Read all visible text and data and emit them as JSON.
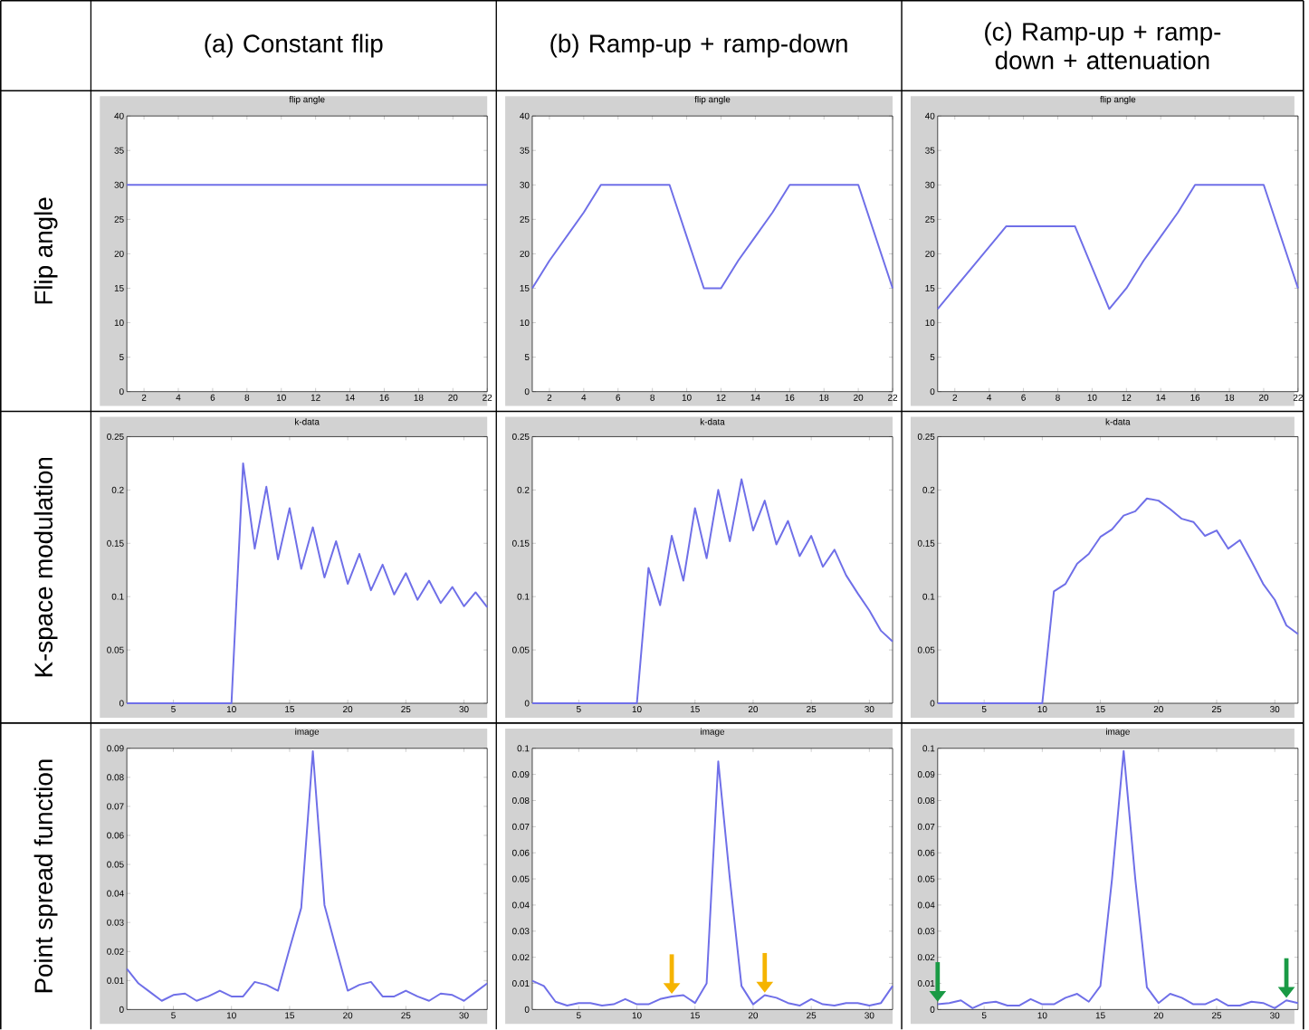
{
  "chart_data": [
    {
      "type": "other",
      "annotations": [
        "(a) Constant flip",
        "(b) Ramp-up + ramp-down",
        "(c) Ramp-up + ramp-down + attenuation",
        "Flip angle",
        "K-space modulation",
        "Point spread function"
      ]
    },
    {
      "type": "line",
      "title": "flip angle",
      "color": "#6f6fe8",
      "x": [
        1,
        2,
        3,
        4,
        5,
        6,
        7,
        8,
        9,
        10,
        11,
        12,
        13,
        14,
        15,
        16,
        17,
        18,
        19,
        20,
        21,
        22
      ],
      "values": [
        30,
        30,
        30,
        30,
        30,
        30,
        30,
        30,
        30,
        30,
        30,
        30,
        30,
        30,
        30,
        30,
        30,
        30,
        30,
        30,
        30,
        30
      ],
      "xlim": [
        1,
        22
      ],
      "xticks": [
        2,
        4,
        6,
        8,
        10,
        12,
        14,
        16,
        18,
        20,
        22
      ],
      "ylim": [
        0,
        40
      ],
      "yticks": [
        0,
        5,
        10,
        15,
        20,
        25,
        30,
        35,
        40
      ]
    },
    {
      "type": "line",
      "title": "flip angle",
      "color": "#6f6fe8",
      "x": [
        1,
        2,
        3,
        4,
        5,
        6,
        7,
        8,
        9,
        10,
        11,
        12,
        13,
        14,
        15,
        16,
        17,
        18,
        19,
        20,
        21,
        22
      ],
      "values": [
        15,
        19,
        22.5,
        26,
        30,
        30,
        30,
        30,
        30,
        22.5,
        15,
        15,
        19,
        22.5,
        26,
        30,
        30,
        30,
        30,
        30,
        22.5,
        15
      ],
      "xlim": [
        1,
        22
      ],
      "xticks": [
        2,
        4,
        6,
        8,
        10,
        12,
        14,
        16,
        18,
        20,
        22
      ],
      "ylim": [
        0,
        40
      ],
      "yticks": [
        0,
        5,
        10,
        15,
        20,
        25,
        30,
        35,
        40
      ]
    },
    {
      "type": "line",
      "title": "flip angle",
      "color": "#6f6fe8",
      "x": [
        1,
        2,
        3,
        4,
        5,
        6,
        7,
        8,
        9,
        10,
        11,
        12,
        13,
        14,
        15,
        16,
        17,
        18,
        19,
        20,
        21,
        22
      ],
      "values": [
        12,
        15,
        18,
        21,
        24,
        24,
        24,
        24,
        24,
        18,
        12,
        15,
        19,
        22.5,
        26,
        30,
        30,
        30,
        30,
        30,
        22.5,
        15
      ],
      "xlim": [
        1,
        22
      ],
      "xticks": [
        2,
        4,
        6,
        8,
        10,
        12,
        14,
        16,
        18,
        20,
        22
      ],
      "ylim": [
        0,
        40
      ],
      "yticks": [
        0,
        5,
        10,
        15,
        20,
        25,
        30,
        35,
        40
      ]
    },
    {
      "type": "line",
      "title": "k-data",
      "color": "#6f6fe8",
      "x": [
        1,
        2,
        3,
        4,
        5,
        6,
        7,
        8,
        9,
        10,
        11,
        12,
        13,
        14,
        15,
        16,
        17,
        18,
        19,
        20,
        21,
        22,
        23,
        24,
        25,
        26,
        27,
        28,
        29,
        30,
        31,
        32
      ],
      "values": [
        0,
        0,
        0,
        0,
        0,
        0,
        0,
        0,
        0,
        0,
        0.225,
        0.145,
        0.203,
        0.135,
        0.183,
        0.126,
        0.165,
        0.118,
        0.152,
        0.112,
        0.14,
        0.106,
        0.13,
        0.102,
        0.122,
        0.097,
        0.115,
        0.094,
        0.109,
        0.091,
        0.104,
        0.09
      ],
      "xlim": [
        1,
        32
      ],
      "xticks": [
        5,
        10,
        15,
        20,
        25,
        30
      ],
      "ylim": [
        0,
        0.25
      ],
      "yticks": [
        0,
        0.05,
        0.1,
        0.15,
        0.2,
        0.25
      ]
    },
    {
      "type": "line",
      "title": "k-data",
      "color": "#6f6fe8",
      "x": [
        1,
        2,
        3,
        4,
        5,
        6,
        7,
        8,
        9,
        10,
        11,
        12,
        13,
        14,
        15,
        16,
        17,
        18,
        19,
        20,
        21,
        22,
        23,
        24,
        25,
        26,
        27,
        28,
        29,
        30,
        31,
        32
      ],
      "values": [
        0,
        0,
        0,
        0,
        0,
        0,
        0,
        0,
        0,
        0,
        0.127,
        0.092,
        0.157,
        0.115,
        0.183,
        0.136,
        0.2,
        0.152,
        0.21,
        0.162,
        0.19,
        0.149,
        0.171,
        0.138,
        0.157,
        0.128,
        0.144,
        0.12,
        0.103,
        0.087,
        0.068,
        0.058
      ],
      "xlim": [
        1,
        32
      ],
      "xticks": [
        5,
        10,
        15,
        20,
        25,
        30
      ],
      "ylim": [
        0,
        0.25
      ],
      "yticks": [
        0,
        0.05,
        0.1,
        0.15,
        0.2,
        0.25
      ]
    },
    {
      "type": "line",
      "title": "k-data",
      "color": "#6f6fe8",
      "x": [
        1,
        2,
        3,
        4,
        5,
        6,
        7,
        8,
        9,
        10,
        11,
        12,
        13,
        14,
        15,
        16,
        17,
        18,
        19,
        20,
        21,
        22,
        23,
        24,
        25,
        26,
        27,
        28,
        29,
        30,
        31,
        32
      ],
      "values": [
        0,
        0,
        0,
        0,
        0,
        0,
        0,
        0,
        0,
        0,
        0.105,
        0.112,
        0.131,
        0.14,
        0.156,
        0.163,
        0.176,
        0.18,
        0.192,
        0.19,
        0.182,
        0.173,
        0.17,
        0.157,
        0.162,
        0.145,
        0.153,
        0.133,
        0.112,
        0.097,
        0.073,
        0.065
      ],
      "xlim": [
        1,
        32
      ],
      "xticks": [
        5,
        10,
        15,
        20,
        25,
        30
      ],
      "ylim": [
        0,
        0.25
      ],
      "yticks": [
        0,
        0.05,
        0.1,
        0.15,
        0.2,
        0.25
      ]
    },
    {
      "type": "line",
      "title": "image",
      "color": "#6f6fe8",
      "x": [
        1,
        2,
        3,
        4,
        5,
        6,
        7,
        8,
        9,
        10,
        11,
        12,
        13,
        14,
        15,
        16,
        17,
        18,
        19,
        20,
        21,
        22,
        23,
        24,
        25,
        26,
        27,
        28,
        29,
        30,
        31,
        32
      ],
      "values": [
        0.014,
        0.009,
        0.006,
        0.003,
        0.005,
        0.0055,
        0.003,
        0.0045,
        0.0065,
        0.0045,
        0.0045,
        0.0095,
        0.0085,
        0.0065,
        0.021,
        0.035,
        0.089,
        0.036,
        0.021,
        0.0065,
        0.0085,
        0.0095,
        0.0045,
        0.0045,
        0.0065,
        0.0045,
        0.003,
        0.0055,
        0.005,
        0.003,
        0.006,
        0.009
      ],
      "xlim": [
        1,
        32
      ],
      "xticks": [
        5,
        10,
        15,
        20,
        25,
        30
      ],
      "ylim": [
        0,
        0.09
      ],
      "yticks": [
        0,
        0.01,
        0.02,
        0.03,
        0.04,
        0.05,
        0.06,
        0.07,
        0.08,
        0.09
      ]
    },
    {
      "type": "line",
      "title": "image",
      "color": "#6f6fe8",
      "x": [
        1,
        2,
        3,
        4,
        5,
        6,
        7,
        8,
        9,
        10,
        11,
        12,
        13,
        14,
        15,
        16,
        17,
        18,
        19,
        20,
        21,
        22,
        23,
        24,
        25,
        26,
        27,
        28,
        29,
        30,
        31,
        32
      ],
      "values": [
        0.011,
        0.009,
        0.003,
        0.0015,
        0.0025,
        0.0025,
        0.0015,
        0.002,
        0.004,
        0.002,
        0.002,
        0.004,
        0.005,
        0.0055,
        0.0025,
        0.01,
        0.095,
        0.05,
        0.009,
        0.002,
        0.0055,
        0.0045,
        0.0025,
        0.0015,
        0.004,
        0.002,
        0.0015,
        0.0025,
        0.0025,
        0.0015,
        0.0025,
        0.009
      ],
      "xlim": [
        1,
        32
      ],
      "xticks": [
        5,
        10,
        15,
        20,
        25,
        30
      ],
      "ylim": [
        0,
        0.1
      ],
      "yticks": [
        0,
        0.01,
        0.02,
        0.03,
        0.04,
        0.05,
        0.06,
        0.07,
        0.08,
        0.09,
        0.1
      ]
    },
    {
      "type": "line",
      "title": "image",
      "color": "#6f6fe8",
      "x": [
        1,
        2,
        3,
        4,
        5,
        6,
        7,
        8,
        9,
        10,
        11,
        12,
        13,
        14,
        15,
        16,
        17,
        18,
        19,
        20,
        21,
        22,
        23,
        24,
        25,
        26,
        27,
        28,
        29,
        30,
        31,
        32
      ],
      "values": [
        0.002,
        0.0025,
        0.0035,
        0.0005,
        0.0025,
        0.003,
        0.0015,
        0.0015,
        0.004,
        0.002,
        0.002,
        0.0045,
        0.006,
        0.003,
        0.009,
        0.05,
        0.099,
        0.05,
        0.0085,
        0.0025,
        0.006,
        0.0045,
        0.002,
        0.002,
        0.004,
        0.0015,
        0.0015,
        0.003,
        0.0025,
        0.0005,
        0.0035,
        0.0025
      ],
      "xlim": [
        1,
        32
      ],
      "xticks": [
        5,
        10,
        15,
        20,
        25,
        30
      ],
      "ylim": [
        0,
        0.1
      ],
      "yticks": [
        0,
        0.01,
        0.02,
        0.03,
        0.04,
        0.05,
        0.06,
        0.07,
        0.08,
        0.09,
        0.1
      ]
    }
  ]
}
